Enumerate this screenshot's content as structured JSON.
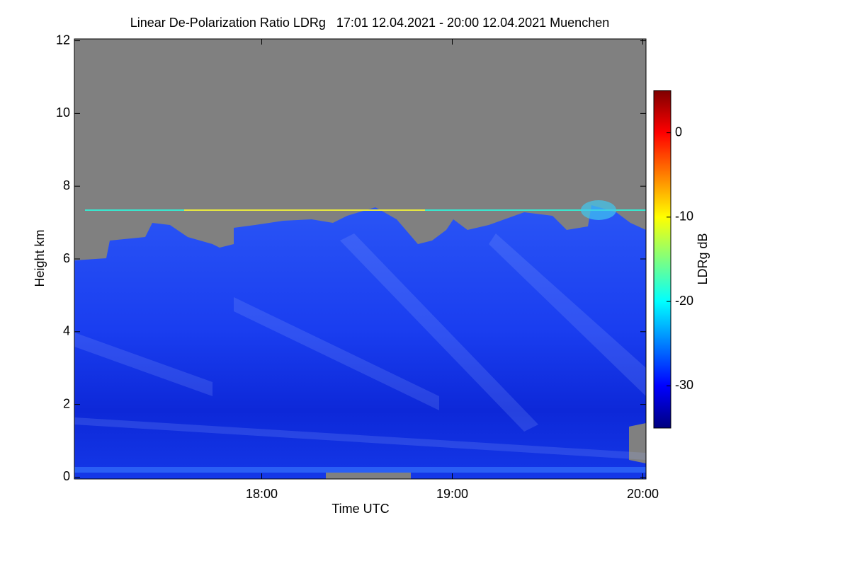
{
  "chart_data": {
    "type": "heatmap",
    "title": "Linear De-Polarization Ratio LDRg   17:01 12.04.2021 - 20:00 12.04.2021 Muenchen",
    "x_label": "Time UTC",
    "y_label": "Height km",
    "xlim": [
      17.0167,
      20.0167
    ],
    "xticks": [
      {
        "value": 18,
        "label": "18:00"
      },
      {
        "value": 19,
        "label": "19:00"
      },
      {
        "value": 20,
        "label": "20:00"
      }
    ],
    "ylim": [
      -0.05,
      12.05
    ],
    "yticks": [
      0,
      2,
      4,
      6,
      8,
      10,
      12
    ],
    "colorbar": {
      "label": "LDRg dB",
      "lim": [
        -35,
        5
      ],
      "ticks": [
        -30,
        -20,
        -10,
        0
      ],
      "colormap": [
        "#00007f",
        "#0000ff",
        "#007fff",
        "#00ffff",
        "#7fff7f",
        "#ffff00",
        "#ff7f00",
        "#ff0000",
        "#7f0000"
      ]
    }
  }
}
